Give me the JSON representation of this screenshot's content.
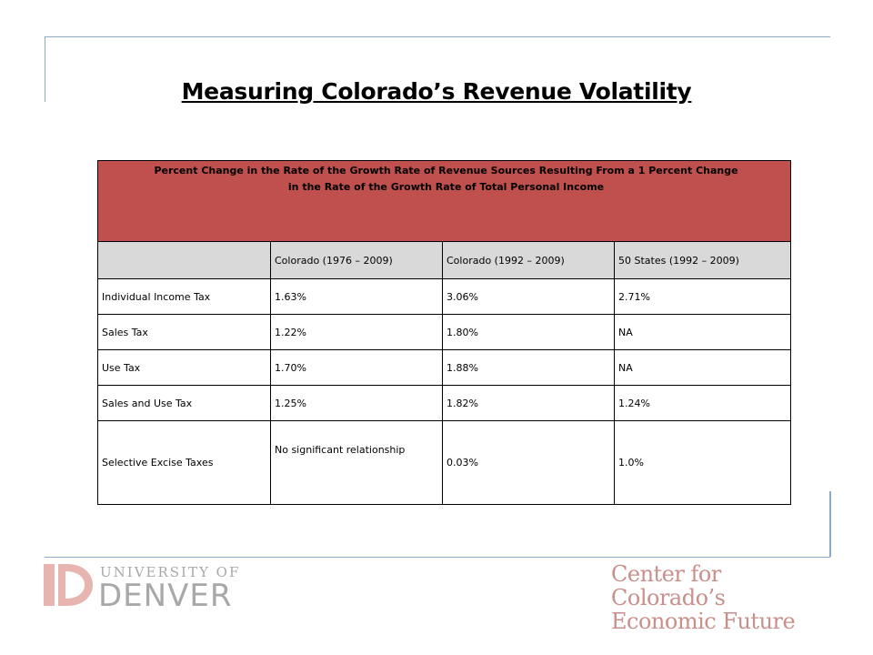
{
  "slide": {
    "title": "Measuring Colorado’s Revenue Volatility"
  },
  "table": {
    "header_line1": "Percent Change in the Rate of the Growth Rate of Revenue Sources Resulting From a 1 Percent Change",
    "header_line2": "in the Rate of the Growth Rate of Total Personal Income",
    "columns": [
      "",
      "Colorado (1976 – 2009)",
      "Colorado (1992 – 2009)",
      "50 States (1992 – 2009)"
    ],
    "rows": [
      [
        "Individual Income Tax",
        "1.63%",
        "3.06%",
        "2.71%"
      ],
      [
        "Sales Tax",
        "1.22%",
        "1.80%",
        "NA"
      ],
      [
        "Use Tax",
        "1.70%",
        "1.88%",
        "NA"
      ],
      [
        "Sales and Use Tax",
        "1.25%",
        "1.82%",
        "1.24%"
      ],
      [
        "Selective Excise Taxes",
        "No significant relationship",
        "0.03%",
        "1.0%"
      ]
    ],
    "header_color": "#c0504d",
    "subheader_color": "#d9d9d9"
  },
  "logos": {
    "du_line1": "UNIVERSITY OF",
    "du_line2": "DENVER",
    "du_color": "#e8b4b0",
    "ccef_line1": "Center for Colorado’s",
    "ccef_line2": "Economic Future",
    "ccef_color": "#c98f8b"
  }
}
